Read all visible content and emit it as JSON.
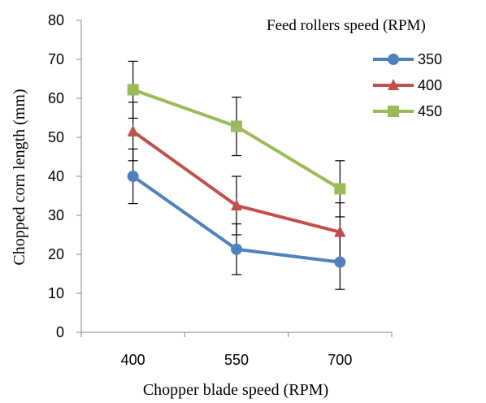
{
  "chart_data": {
    "type": "line",
    "title": "",
    "xlabel": "Chopper blade speed (RPM)",
    "ylabel": "Chopped corn length (mm)",
    "categories": [
      "400",
      "550",
      "700"
    ],
    "ylim": [
      0,
      80
    ],
    "yticks": [
      0,
      10,
      20,
      30,
      40,
      50,
      60,
      70,
      80
    ],
    "grid": false,
    "legend": {
      "title": "Feed rollers speed (RPM)",
      "position": "top-right"
    },
    "series": [
      {
        "name": "350",
        "values": [
          40.0,
          21.3,
          18.0
        ],
        "errors": [
          7.0,
          6.5,
          7.0
        ],
        "color": "#4f81bd",
        "marker": "circle"
      },
      {
        "name": "400",
        "values": [
          51.5,
          32.5,
          25.7
        ],
        "errors": [
          7.5,
          7.5,
          7.5
        ],
        "color": "#c0504d",
        "marker": "triangle"
      },
      {
        "name": "450",
        "values": [
          62.2,
          52.8,
          36.8
        ],
        "errors": [
          7.3,
          7.5,
          7.2
        ],
        "color": "#9bbb59",
        "marker": "square"
      }
    ]
  }
}
